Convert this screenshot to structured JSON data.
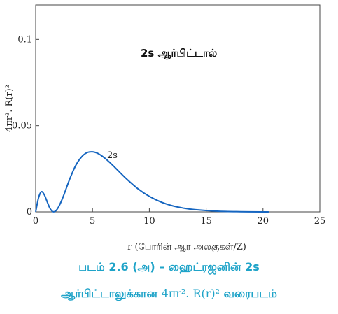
{
  "chart_data": {
    "type": "line",
    "title": "2s ஆர்பிட்டால்",
    "xlabel": "r (போரின் ஆர அலகுகள்/Z)",
    "ylabel": "4πr². R(r)²",
    "xlim": [
      0,
      25
    ],
    "ylim": [
      0,
      0.12
    ],
    "x_ticks": [
      0,
      5,
      10,
      15,
      20,
      25
    ],
    "x_tick_labels": [
      "0",
      "5",
      "10",
      "15",
      "20",
      "25"
    ],
    "y_ticks": [
      0,
      0.05,
      0.1
    ],
    "y_tick_labels": [
      "0",
      "0.05",
      "0.1"
    ],
    "grid": false,
    "series": [
      {
        "name": "2s",
        "color": "#1565c0",
        "x": [
          0,
          0.25,
          0.5,
          0.75,
          1.0,
          1.25,
          1.5,
          1.75,
          2.0,
          2.25,
          2.5,
          3.0,
          3.5,
          4.0,
          4.5,
          5.0,
          5.5,
          6.0,
          6.5,
          7.0,
          8.0,
          9.0,
          10.0,
          11.0,
          12.0,
          13.0,
          14.0,
          16.0,
          18.0,
          20.0,
          20.5
        ],
        "y": [
          0,
          0.0081,
          0.0117,
          0.0101,
          0.0061,
          0.0022,
          0.0002,
          0.0005,
          0.0027,
          0.0061,
          0.0102,
          0.0191,
          0.0266,
          0.0316,
          0.0343,
          0.0348,
          0.0338,
          0.0316,
          0.0288,
          0.0256,
          0.0191,
          0.0134,
          0.009,
          0.0058,
          0.0036,
          0.0022,
          0.0013,
          0.0004,
          0.0001,
          0,
          0
        ]
      }
    ]
  },
  "caption": {
    "line1": "படம் 2.6 (அ) – ஹைட்ரஜனின் 2s",
    "line2_prefix": "ஆர்பிட்டாலுக்கான",
    "line2_formula": "4πr². R(r)²",
    "line2_suffix": "வரைபடம்",
    "color": "#1ea3c8"
  }
}
